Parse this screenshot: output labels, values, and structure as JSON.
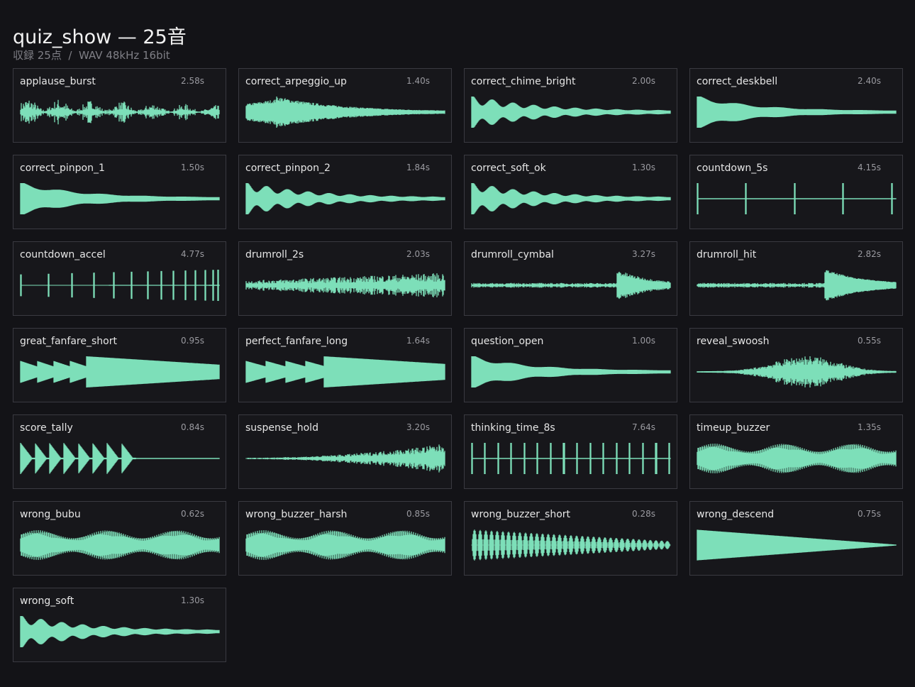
{
  "header": {
    "title": "quiz_show — 25音",
    "subtitle": "収録 25点  /  WAV 48kHz 16bit"
  },
  "sounds": [
    {
      "name": "applause_burst",
      "duration": "2.58s"
    },
    {
      "name": "correct_arpeggio_up",
      "duration": "1.40s"
    },
    {
      "name": "correct_chime_bright",
      "duration": "2.00s"
    },
    {
      "name": "correct_deskbell",
      "duration": "2.40s"
    },
    {
      "name": "correct_pinpon_1",
      "duration": "1.50s"
    },
    {
      "name": "correct_pinpon_2",
      "duration": "1.84s"
    },
    {
      "name": "correct_soft_ok",
      "duration": "1.30s"
    },
    {
      "name": "countdown_5s",
      "duration": "4.15s"
    },
    {
      "name": "countdown_accel",
      "duration": "4.77s"
    },
    {
      "name": "drumroll_2s",
      "duration": "2.03s"
    },
    {
      "name": "drumroll_cymbal",
      "duration": "3.27s"
    },
    {
      "name": "drumroll_hit",
      "duration": "2.82s"
    },
    {
      "name": "great_fanfare_short",
      "duration": "0.95s"
    },
    {
      "name": "perfect_fanfare_long",
      "duration": "1.64s"
    },
    {
      "name": "question_open",
      "duration": "1.00s"
    },
    {
      "name": "reveal_swoosh",
      "duration": "0.55s"
    },
    {
      "name": "score_tally",
      "duration": "0.84s"
    },
    {
      "name": "suspense_hold",
      "duration": "3.20s"
    },
    {
      "name": "thinking_time_8s",
      "duration": "7.64s"
    },
    {
      "name": "timeup_buzzer",
      "duration": "1.35s"
    },
    {
      "name": "wrong_bubu",
      "duration": "0.62s"
    },
    {
      "name": "wrong_buzzer_harsh",
      "duration": "0.85s"
    },
    {
      "name": "wrong_buzzer_short",
      "duration": "0.28s"
    },
    {
      "name": "wrong_descend",
      "duration": "0.75s"
    },
    {
      "name": "wrong_soft",
      "duration": "1.30s"
    }
  ]
}
